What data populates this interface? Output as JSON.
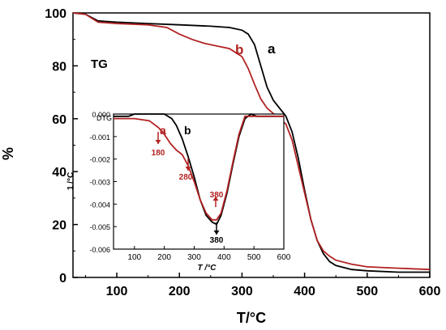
{
  "chart_data": [
    {
      "type": "line",
      "xlabel": "T/°C",
      "ylabel": "%",
      "xlim": [
        30,
        600
      ],
      "ylim": [
        0,
        100
      ],
      "xticks": [
        100,
        200,
        300,
        400,
        500,
        600
      ],
      "yticks": [
        0,
        20,
        40,
        60,
        80,
        100
      ],
      "annotations": {
        "panel_label": "TG"
      },
      "series": [
        {
          "name": "a",
          "color": "#000000",
          "x": [
            30,
            50,
            70,
            100,
            150,
            200,
            250,
            280,
            300,
            310,
            320,
            330,
            340,
            350,
            360,
            370,
            380,
            390,
            400,
            410,
            420,
            430,
            440,
            450,
            475,
            500,
            550,
            600
          ],
          "y": [
            100,
            99.5,
            97,
            96.5,
            96,
            95.5,
            95,
            94.5,
            93.5,
            92,
            88,
            80,
            72,
            67,
            64,
            61,
            55,
            45,
            33,
            22,
            14,
            9,
            6,
            4.5,
            3,
            2.5,
            2,
            2
          ]
        },
        {
          "name": "b",
          "color": "#b22222",
          "x": [
            30,
            50,
            70,
            100,
            150,
            180,
            200,
            220,
            240,
            260,
            280,
            300,
            310,
            320,
            330,
            340,
            350,
            360,
            370,
            380,
            390,
            400,
            410,
            420,
            430,
            440,
            450,
            475,
            500,
            550,
            600
          ],
          "y": [
            100,
            99.5,
            96.5,
            96,
            95.5,
            94.5,
            92,
            90,
            88.5,
            87.5,
            86.5,
            83.5,
            79,
            73,
            67.5,
            64,
            62,
            60,
            58,
            52,
            42,
            32,
            22,
            14,
            10,
            8,
            6.5,
            5,
            4,
            3.5,
            3
          ]
        }
      ]
    },
    {
      "type": "line",
      "title": "DTG",
      "xlabel": "T /°C",
      "ylabel": "1 /°C",
      "xlim": [
        30,
        600
      ],
      "ylim": [
        -0.006,
        0
      ],
      "xticks": [
        100,
        200,
        300,
        400,
        500,
        600
      ],
      "yticks": [
        0,
        -0.001,
        -0.002,
        -0.003,
        -0.004,
        -0.005,
        -0.006
      ],
      "ytick_labels": [
        "0.000",
        "-0.001",
        "-0.002",
        "-0.003",
        "-0.004",
        "-0.005",
        "-0.006"
      ],
      "annotations": {
        "peak_180": "180",
        "peak_280": "280",
        "peak_380_a": "380",
        "peak_380_b": "380"
      },
      "series": [
        {
          "name": "b",
          "color": "#000000",
          "x": [
            30,
            80,
            100,
            150,
            180,
            200,
            225,
            240,
            260,
            280,
            300,
            320,
            340,
            360,
            375,
            390,
            410,
            430,
            450,
            470,
            490,
            510,
            530,
            550,
            600
          ],
          "y": [
            -0.0001,
            -0.0001,
            0.0,
            0.0,
            0.0,
            0.0,
            -0.0002,
            -0.0005,
            -0.0011,
            -0.0019,
            -0.0028,
            -0.0038,
            -0.0045,
            -0.0048,
            -0.0049,
            -0.0045,
            -0.0035,
            -0.0022,
            -0.001,
            -0.0002,
            0.0,
            -0.0001,
            -0.0001,
            -0.0001,
            -0.0001
          ]
        },
        {
          "name": "a",
          "color": "#b22222",
          "x": [
            30,
            80,
            100,
            150,
            180,
            200,
            220,
            240,
            260,
            280,
            300,
            320,
            340,
            360,
            375,
            390,
            410,
            430,
            450,
            470,
            490,
            510,
            530,
            550,
            600
          ],
          "y": [
            -0.0002,
            -0.0002,
            -0.0002,
            -0.0003,
            -0.0006,
            -0.0009,
            -0.0013,
            -0.0016,
            -0.0018,
            -0.0023,
            -0.003,
            -0.0038,
            -0.0044,
            -0.0047,
            -0.0047,
            -0.0044,
            -0.0034,
            -0.0021,
            -0.0009,
            -0.0001,
            -0.0001,
            -0.0001,
            -0.0001,
            -0.0001,
            -0.0001
          ]
        }
      ]
    }
  ]
}
